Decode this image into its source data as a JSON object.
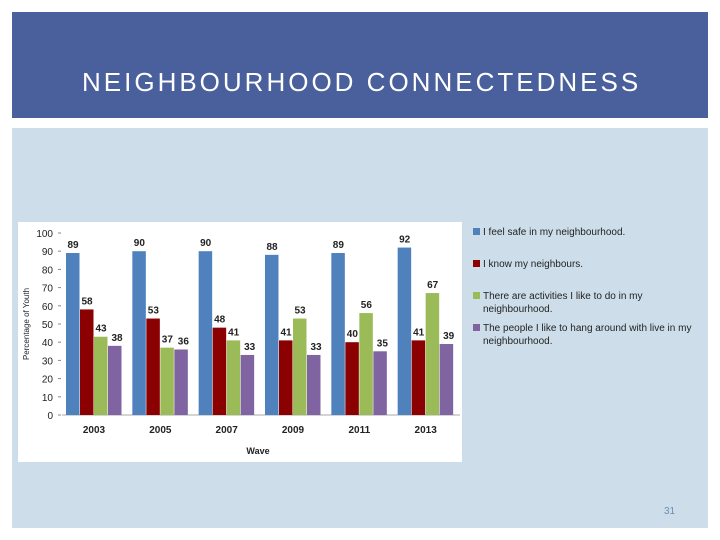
{
  "slide": {
    "title": "NEIGHBOURHOOD CONNECTEDNESS",
    "page_number": "31"
  },
  "chart_data": {
    "type": "bar",
    "categories": [
      "2003",
      "2005",
      "2007",
      "2009",
      "2011",
      "2013"
    ],
    "series": [
      {
        "name": "I feel safe in my neighbourhood.",
        "color": "#4f81bd",
        "values": [
          89,
          90,
          90,
          88,
          89,
          92
        ]
      },
      {
        "name": "I know my neighbours.",
        "color": "#8b0000",
        "values": [
          58,
          53,
          48,
          41,
          40,
          41
        ]
      },
      {
        "name": "There are activities I like to do in my neighbourhood.",
        "color": "#9bbb59",
        "values": [
          43,
          37,
          41,
          53,
          56,
          67
        ]
      },
      {
        "name": "The people I like to hang around with live in my neighbourhood.",
        "color": "#8064a2",
        "values": [
          38,
          36,
          33,
          33,
          35,
          39
        ]
      }
    ],
    "title": "",
    "xlabel": "Wave",
    "ylabel": "Percentage of Youth",
    "ylim": [
      0,
      100
    ],
    "yticks": [
      0,
      10,
      20,
      30,
      40,
      50,
      60,
      70,
      80,
      90,
      100
    ],
    "grid": false,
    "legend_position": "right",
    "data_labels": true
  }
}
